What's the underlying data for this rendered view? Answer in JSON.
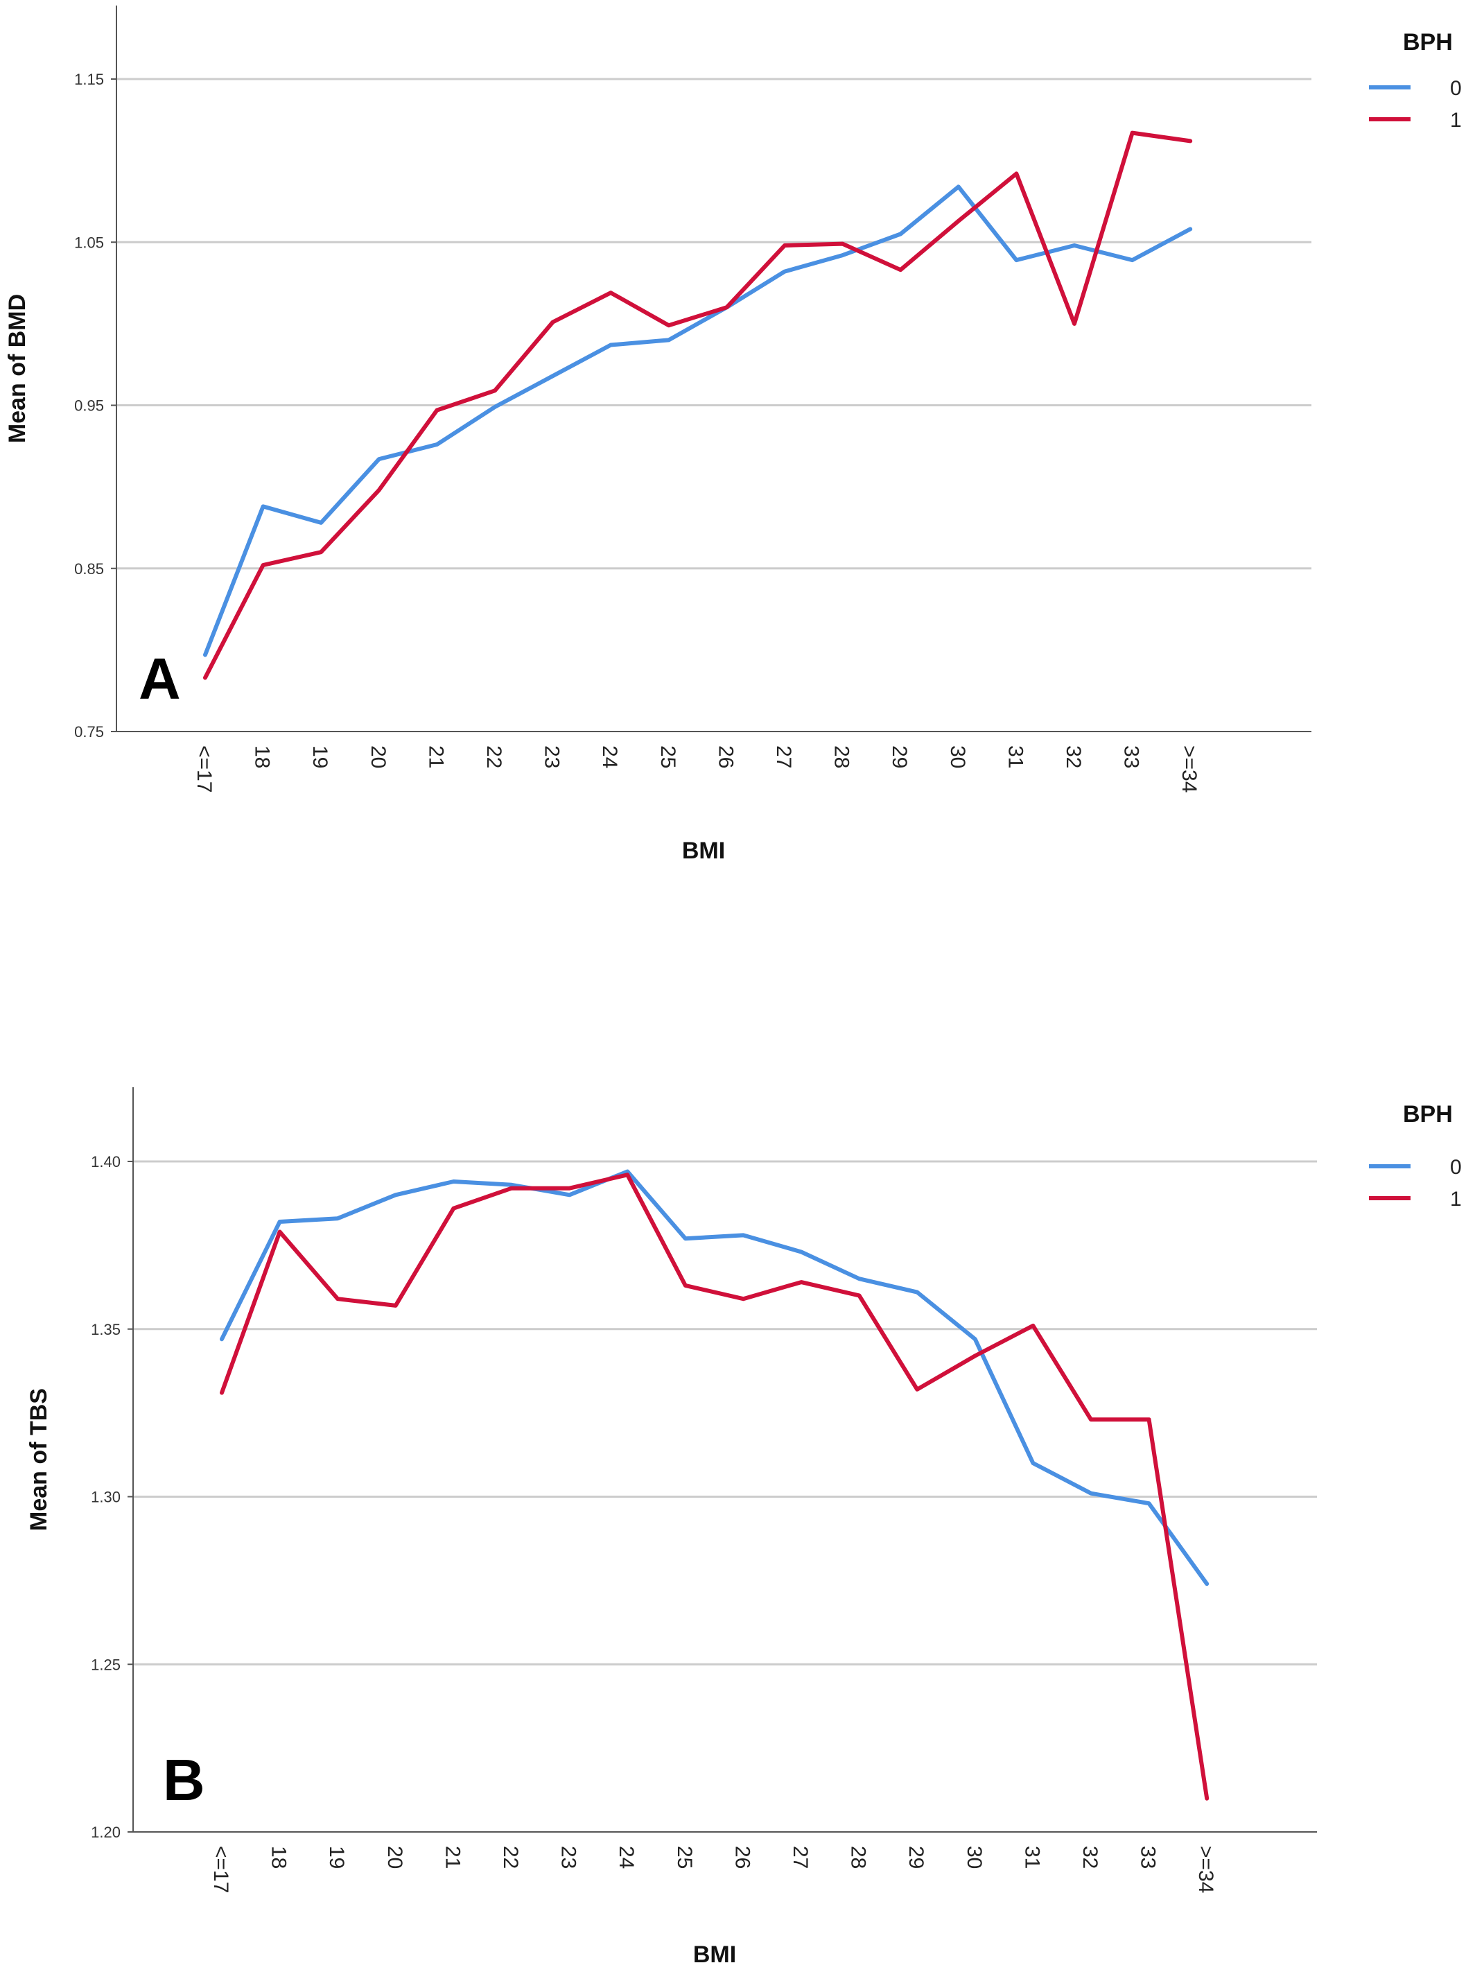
{
  "chart_data": [
    {
      "type": "line",
      "panel_label": "A",
      "xlabel": "BMI",
      "ylabel": "Mean of BMD",
      "ylim": [
        0.75,
        1.19
      ],
      "yticks": [
        "0.75",
        "0.85",
        "0.95",
        "1.05",
        "1.15"
      ],
      "ytick_values": [
        0.75,
        0.85,
        0.95,
        1.05,
        1.15
      ],
      "grid": true,
      "legend_placement": "top-right, outside plot",
      "legend_title": "BPH",
      "categories": [
        "<=17",
        "18",
        "19",
        "20",
        "21",
        "22",
        "23",
        "24",
        "25",
        "26",
        "27",
        "28",
        "29",
        "30",
        "31",
        "32",
        "33",
        ">=34"
      ],
      "series": [
        {
          "name": "0",
          "color": "#4a90e2",
          "values": [
            0.797,
            0.888,
            0.878,
            0.917,
            0.926,
            0.949,
            0.968,
            0.987,
            0.99,
            1.01,
            1.032,
            1.042,
            1.055,
            1.084,
            1.039,
            1.048,
            1.039,
            1.058
          ]
        },
        {
          "name": "1",
          "color": "#d0103a",
          "values": [
            0.783,
            0.852,
            0.86,
            0.898,
            0.947,
            0.959,
            1.001,
            1.019,
            0.999,
            1.01,
            1.048,
            1.049,
            1.033,
            1.063,
            1.092,
            1.0,
            1.117,
            1.112
          ]
        }
      ]
    },
    {
      "type": "line",
      "panel_label": "B",
      "xlabel": "BMI",
      "ylabel": "Mean of TBS",
      "ylim": [
        1.2,
        1.42
      ],
      "yticks": [
        "1.20",
        "1.25",
        "1.30",
        "1.35",
        "1.40"
      ],
      "ytick_values": [
        1.2,
        1.25,
        1.3,
        1.35,
        1.4
      ],
      "grid": true,
      "legend_placement": "top-right, outside plot",
      "legend_title": "BPH",
      "categories": [
        "<=17",
        "18",
        "19",
        "20",
        "21",
        "22",
        "23",
        "24",
        "25",
        "26",
        "27",
        "28",
        "29",
        "30",
        "31",
        "32",
        "33",
        ">=34"
      ],
      "series": [
        {
          "name": "0",
          "color": "#4a90e2",
          "values": [
            1.347,
            1.382,
            1.383,
            1.39,
            1.394,
            1.393,
            1.39,
            1.397,
            1.377,
            1.378,
            1.373,
            1.365,
            1.361,
            1.347,
            1.31,
            1.301,
            1.298,
            1.274
          ]
        },
        {
          "name": "1",
          "color": "#d0103a",
          "values": [
            1.331,
            1.379,
            1.359,
            1.357,
            1.386,
            1.392,
            1.392,
            1.396,
            1.363,
            1.359,
            1.364,
            1.36,
            1.332,
            1.342,
            1.351,
            1.323,
            1.323,
            1.21
          ]
        }
      ]
    }
  ]
}
